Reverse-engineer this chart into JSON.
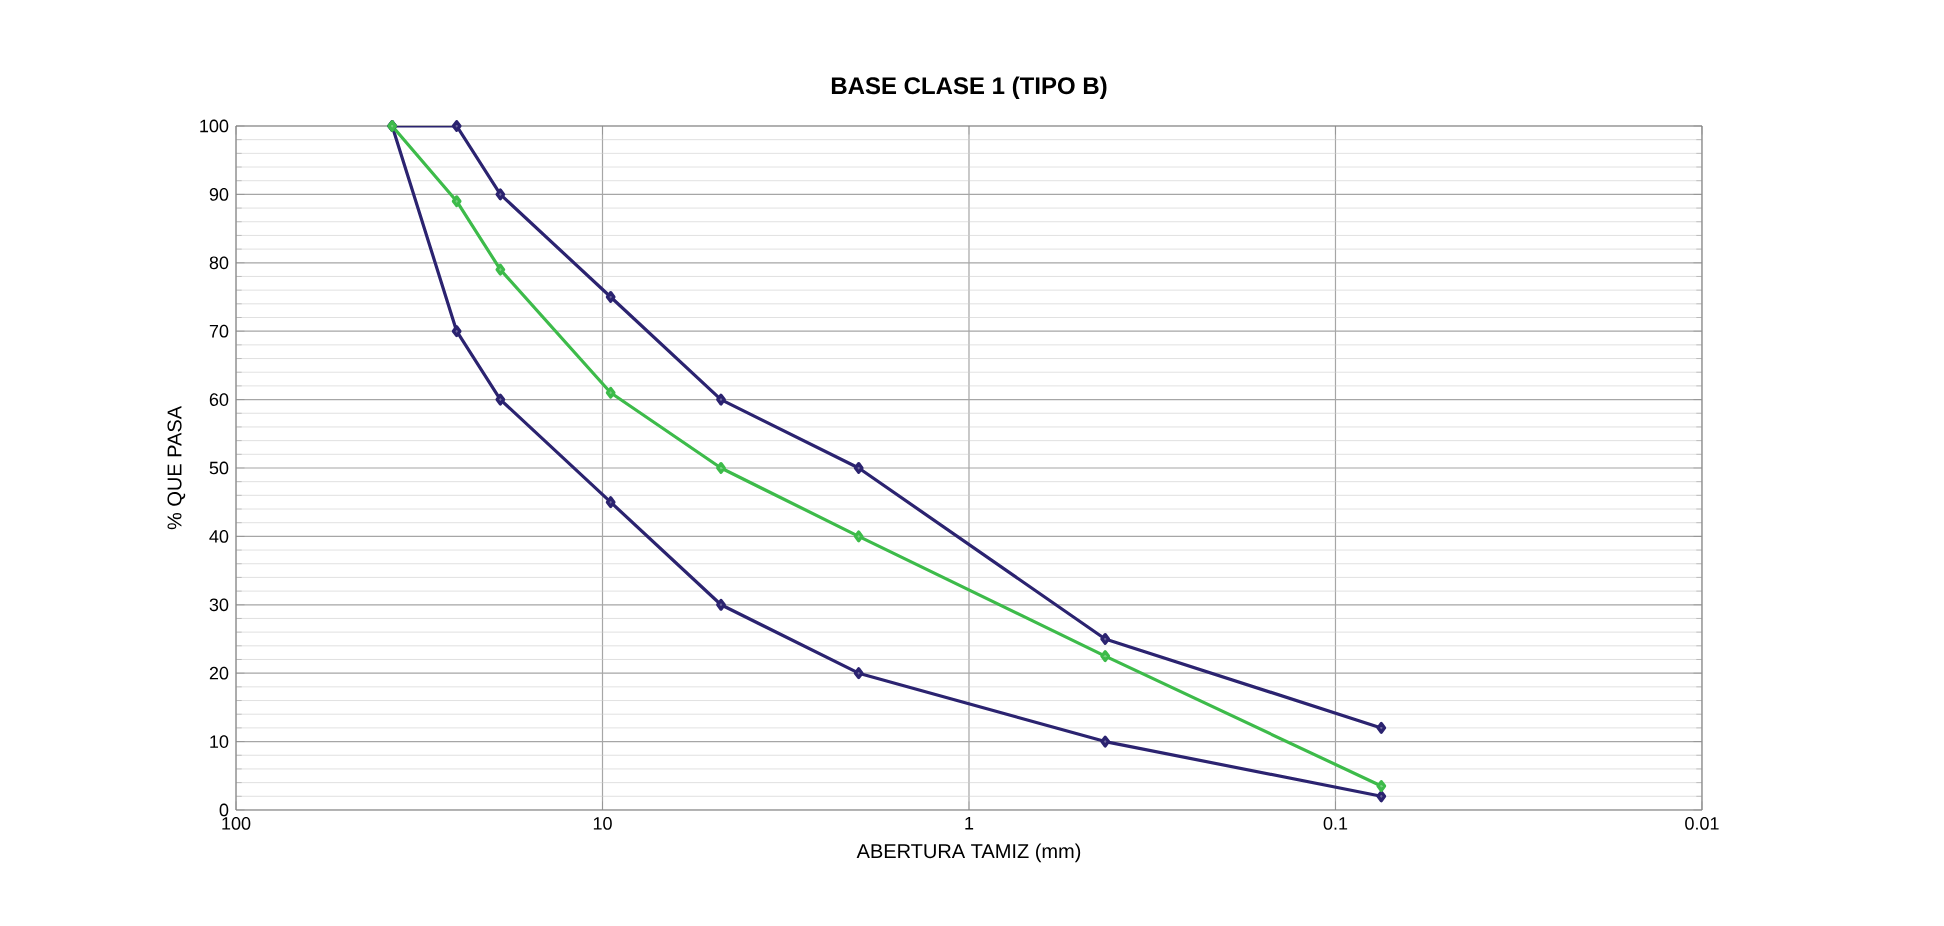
{
  "chart_data": {
    "type": "line",
    "title": "BASE CLASE 1 (TIPO B)",
    "xlabel": "ABERTURA TAMIZ (mm)",
    "ylabel": "% QUE PASA",
    "x": [
      37.5,
      25,
      19,
      9.5,
      4.75,
      2.0,
      0.425,
      0.075
    ],
    "series": [
      {
        "color": "#2b2370",
        "values": [
          100,
          100,
          90,
          75,
          60,
          50,
          25,
          12
        ]
      },
      {
        "color": "#2b2370",
        "values": [
          100,
          70,
          60,
          45,
          30,
          20,
          10,
          2
        ]
      },
      {
        "color": "#3dbb4a",
        "values": [
          100,
          89,
          79,
          61,
          50,
          40,
          22.5,
          3.5
        ]
      }
    ],
    "log": "x",
    "xlim": [
      100,
      0.01
    ],
    "xticks": [
      100,
      10,
      1,
      0.1,
      0.01
    ],
    "ylim": [
      0,
      100
    ],
    "yticks": [
      0,
      10,
      20,
      30,
      40,
      50,
      60,
      70,
      80,
      90,
      100
    ],
    "grid": true,
    "marker": "diamond",
    "line_style": "solid"
  }
}
